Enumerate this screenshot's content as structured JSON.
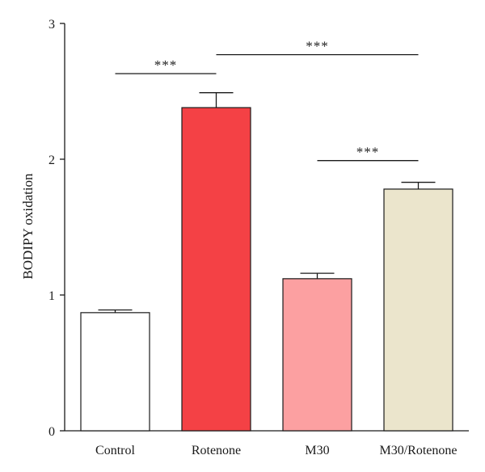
{
  "chart_data": {
    "type": "bar",
    "title": "",
    "xlabel": "",
    "ylabel": "BODIPY oxidation",
    "ylim": [
      0,
      3
    ],
    "yticks": [
      0,
      1,
      2,
      3
    ],
    "grid": false,
    "categories": [
      "Control",
      "Rotenone",
      "M30",
      "M30/Rotenone"
    ],
    "values": [
      0.87,
      2.38,
      1.12,
      1.78
    ],
    "errors": [
      0.02,
      0.11,
      0.04,
      0.05
    ],
    "bar_colors": [
      "#ffffff",
      "#f44145",
      "#fca0a1",
      "#ebe5cc"
    ],
    "significance": [
      {
        "from": 0,
        "to": 1,
        "label": "***",
        "y": 2.63
      },
      {
        "from": 1,
        "to": 3,
        "label": "***",
        "y": 2.77
      },
      {
        "from": 2,
        "to": 3,
        "label": "***",
        "y": 1.99
      }
    ]
  }
}
